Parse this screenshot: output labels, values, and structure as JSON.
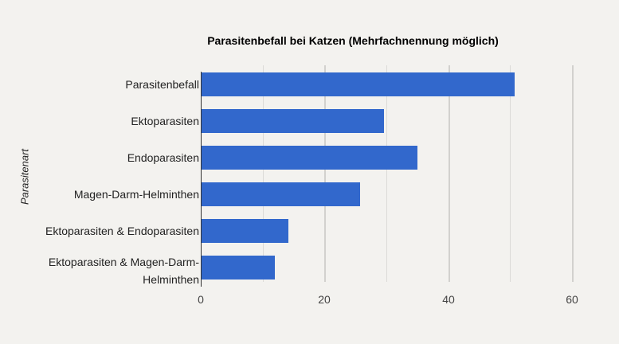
{
  "chart_data": {
    "type": "bar",
    "orientation": "horizontal",
    "title": "Parasitenbefall bei Katzen (Mehrfachnennung möglich)",
    "xlabel": "",
    "ylabel": "Parasitenart",
    "categories": [
      "Parasitenbefall",
      "Ektoparasiten",
      "Endoparasiten",
      "Magen-Darm-Helminthen",
      "Ektoparasiten & Endoparasiten",
      "Ektoparasiten & Magen-Darm-Helminthen"
    ],
    "values": [
      50.6,
      29.5,
      34.9,
      25.6,
      14.0,
      11.8
    ],
    "xlim": [
      0,
      64
    ],
    "xticks": [
      0,
      20,
      40,
      60
    ],
    "grid": true,
    "legend": null,
    "bar_color": "#3268cc"
  },
  "labels": {
    "cat0": "Parasitenbefall",
    "cat1": "Ektoparasiten",
    "cat2": "Endoparasiten",
    "cat3": "Magen-Darm-Helminthen",
    "cat4": "Ektoparasiten & Endoparasiten",
    "cat5a": "Ektoparasiten & Magen-Darm-",
    "cat5b": "Helminthen",
    "t0": "0",
    "t20": "20",
    "t40": "40",
    "t60": "60"
  }
}
